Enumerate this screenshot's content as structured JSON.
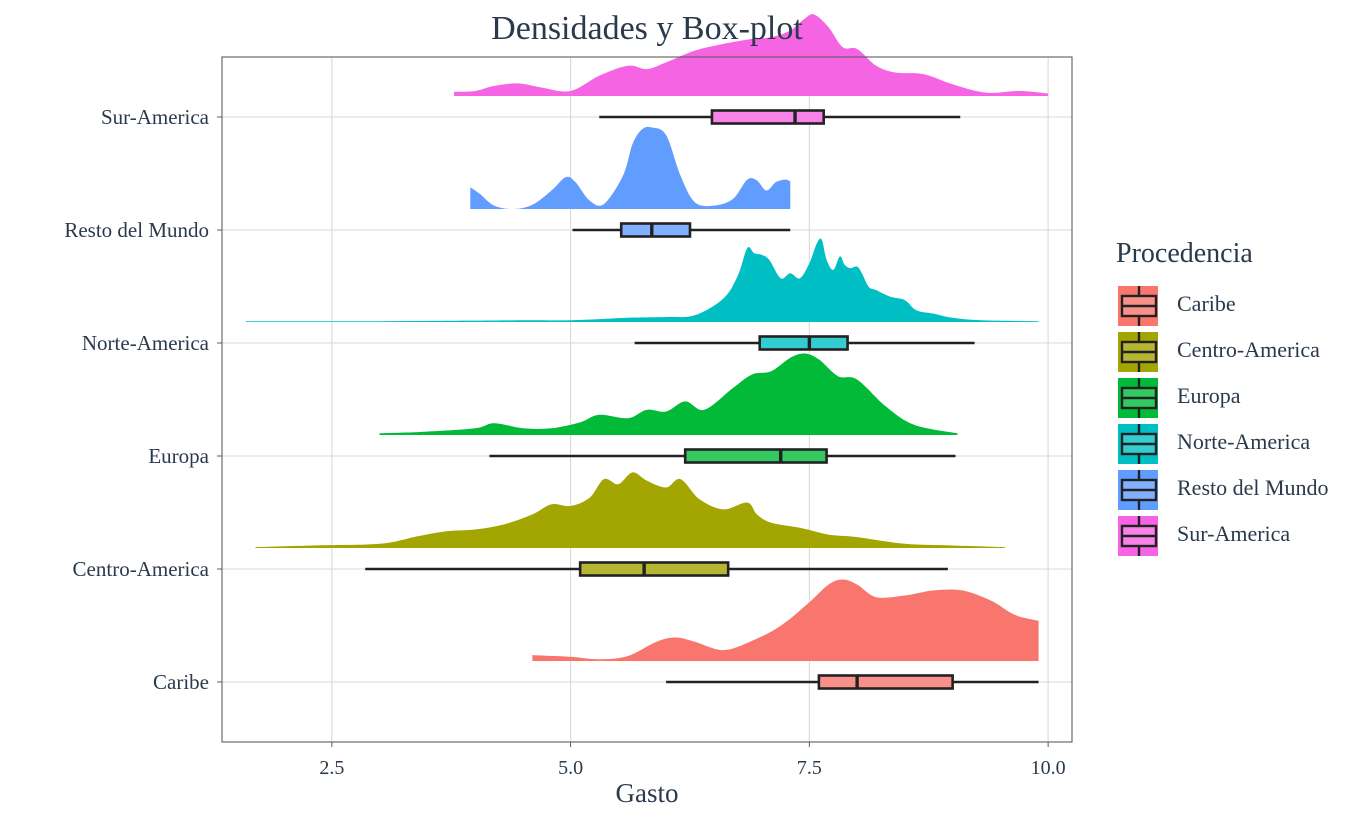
{
  "chart_data": {
    "type": "density-boxplot",
    "title": "Densidades y Box-plot",
    "xlabel": "Gasto",
    "ylabel": "",
    "xlim": [
      1.35,
      10.25
    ],
    "x_ticks": [
      2.5,
      5.0,
      7.5,
      10.0
    ],
    "x_tick_labels": [
      "2.5",
      "5.0",
      "7.5",
      "10.0"
    ],
    "grid": true,
    "legend": {
      "title": "Procedencia",
      "position": "right"
    },
    "categories": [
      "Caribe",
      "Centro-America",
      "Europa",
      "Norte-America",
      "Resto del Mundo",
      "Sur-America"
    ],
    "series": [
      {
        "name": "Caribe",
        "color": "#F8766D",
        "density": {
          "x": [
            4.6,
            5.0,
            5.3,
            5.6,
            5.9,
            6.1,
            6.3,
            6.6,
            6.9,
            7.2,
            7.5,
            7.7,
            7.85,
            8.0,
            8.2,
            8.5,
            8.8,
            9.1,
            9.4,
            9.65,
            9.9
          ],
          "h": [
            0.07,
            0.05,
            0.02,
            0.06,
            0.23,
            0.28,
            0.23,
            0.13,
            0.24,
            0.42,
            0.7,
            0.91,
            0.97,
            0.91,
            0.76,
            0.78,
            0.84,
            0.84,
            0.72,
            0.55,
            0.48
          ]
        },
        "box": {
          "whisker_low": 6.0,
          "q1": 7.6,
          "median": 8.0,
          "q3": 9.0,
          "whisker_high": 9.9
        }
      },
      {
        "name": "Centro-America",
        "color": "#A3A500",
        "density": {
          "x": [
            1.7,
            2.3,
            3.0,
            3.4,
            3.7,
            4.0,
            4.3,
            4.6,
            4.8,
            5.0,
            5.2,
            5.35,
            5.5,
            5.65,
            5.8,
            6.0,
            6.15,
            6.35,
            6.6,
            6.85,
            6.95,
            7.1,
            7.4,
            7.7,
            8.0,
            8.5,
            9.0,
            9.55
          ],
          "h": [
            0.01,
            0.03,
            0.05,
            0.14,
            0.2,
            0.22,
            0.28,
            0.4,
            0.52,
            0.5,
            0.6,
            0.82,
            0.76,
            0.9,
            0.8,
            0.72,
            0.82,
            0.58,
            0.46,
            0.54,
            0.4,
            0.3,
            0.24,
            0.16,
            0.13,
            0.05,
            0.03,
            0.01
          ]
        },
        "box": {
          "whisker_low": 2.85,
          "q1": 5.1,
          "median": 5.77,
          "q3": 6.65,
          "whisker_high": 8.95
        }
      },
      {
        "name": "Europa",
        "color": "#00BA38",
        "density": {
          "x": [
            3.0,
            3.5,
            4.0,
            4.2,
            4.5,
            4.8,
            5.1,
            5.3,
            5.6,
            5.8,
            6.0,
            6.2,
            6.4,
            6.7,
            6.9,
            7.1,
            7.3,
            7.45,
            7.6,
            7.8,
            8.0,
            8.3,
            8.6,
            9.05
          ],
          "h": [
            0.02,
            0.04,
            0.08,
            0.14,
            0.08,
            0.08,
            0.15,
            0.24,
            0.2,
            0.3,
            0.28,
            0.4,
            0.3,
            0.56,
            0.72,
            0.76,
            0.92,
            0.97,
            0.9,
            0.7,
            0.66,
            0.34,
            0.12,
            0.02
          ]
        },
        "box": {
          "whisker_low": 4.15,
          "q1": 6.2,
          "median": 7.2,
          "q3": 7.68,
          "whisker_high": 9.03
        }
      },
      {
        "name": "Norte-America",
        "color": "#00BFC4",
        "density": {
          "x": [
            1.6,
            3.0,
            4.5,
            5.0,
            5.6,
            6.0,
            6.3,
            6.6,
            6.75,
            6.85,
            6.92,
            7.0,
            7.08,
            7.2,
            7.3,
            7.4,
            7.5,
            7.58,
            7.63,
            7.68,
            7.75,
            7.82,
            7.87,
            7.93,
            8.0,
            8.05,
            8.12,
            8.2,
            8.35,
            8.5,
            8.62,
            8.8,
            9.0,
            9.3,
            9.9
          ],
          "h": [
            0.01,
            0.01,
            0.02,
            0.02,
            0.05,
            0.06,
            0.08,
            0.28,
            0.55,
            0.88,
            0.82,
            0.8,
            0.74,
            0.52,
            0.58,
            0.52,
            0.7,
            0.94,
            0.98,
            0.74,
            0.62,
            0.78,
            0.68,
            0.64,
            0.66,
            0.58,
            0.42,
            0.38,
            0.3,
            0.26,
            0.14,
            0.1,
            0.05,
            0.02,
            0.01
          ]
        },
        "box": {
          "whisker_low": 5.67,
          "q1": 6.98,
          "median": 7.5,
          "q3": 7.9,
          "whisker_high": 9.23
        }
      },
      {
        "name": "Resto del Mundo",
        "color": "#619CFF",
        "density": {
          "x": [
            3.95,
            4.05,
            4.2,
            4.4,
            4.6,
            4.8,
            4.95,
            5.05,
            5.2,
            5.35,
            5.55,
            5.65,
            5.75,
            5.85,
            6.0,
            6.15,
            6.3,
            6.5,
            6.7,
            6.85,
            6.95,
            7.05,
            7.15,
            7.25,
            7.3
          ],
          "h": [
            0.26,
            0.18,
            0.04,
            0.0,
            0.05,
            0.22,
            0.38,
            0.32,
            0.1,
            0.06,
            0.4,
            0.78,
            0.95,
            0.97,
            0.88,
            0.4,
            0.08,
            0.04,
            0.12,
            0.35,
            0.34,
            0.22,
            0.32,
            0.35,
            0.33
          ]
        },
        "box": {
          "whisker_low": 5.02,
          "q1": 5.53,
          "median": 5.85,
          "q3": 6.25,
          "whisker_high": 7.3
        }
      },
      {
        "name": "Sur-America",
        "color": "#F564E3",
        "density": {
          "x": [
            3.78,
            4.0,
            4.2,
            4.45,
            4.7,
            5.0,
            5.3,
            5.6,
            5.8,
            6.0,
            6.3,
            6.6,
            6.9,
            7.1,
            7.3,
            7.45,
            7.55,
            7.7,
            7.85,
            8.0,
            8.2,
            8.4,
            8.7,
            9.0,
            9.35,
            9.7,
            10.0
          ],
          "h": [
            0.05,
            0.06,
            0.12,
            0.15,
            0.1,
            0.06,
            0.24,
            0.36,
            0.32,
            0.4,
            0.54,
            0.62,
            0.68,
            0.7,
            0.78,
            0.92,
            0.97,
            0.82,
            0.58,
            0.56,
            0.36,
            0.28,
            0.26,
            0.14,
            0.04,
            0.06,
            0.03
          ]
        },
        "box": {
          "whisker_low": 5.3,
          "q1": 6.48,
          "median": 7.35,
          "q3": 7.65,
          "whisker_high": 9.08
        }
      }
    ]
  }
}
